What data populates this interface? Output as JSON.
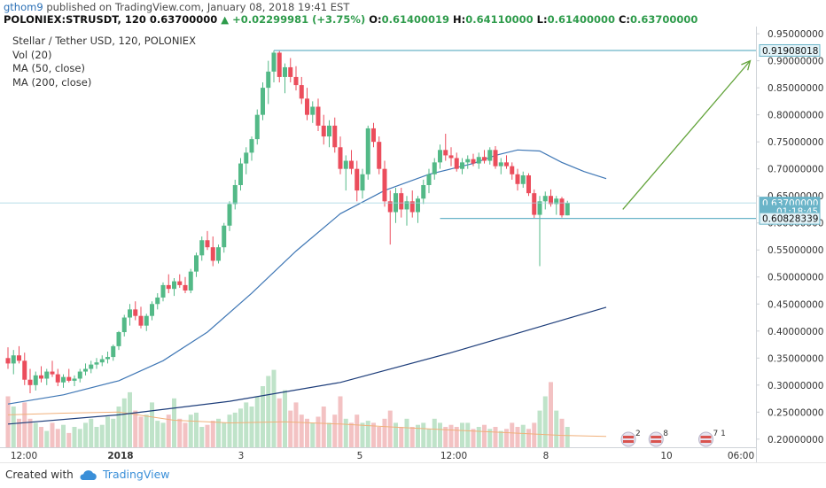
{
  "header": {
    "user": "gthom9",
    "published": "published on TradingView.com, January 08, 2018 19:41 EST",
    "symbol": "POLONIEX:STRUSDT, 120",
    "last": "0.63700000",
    "change": "▲ +0.02299981 (+3.75%)",
    "o_label": "O:",
    "o": "0.61400019",
    "h_label": "H:",
    "h": "0.64110000",
    "l_label": "L:",
    "l": "0.61400000",
    "c_label": "C:",
    "c": "0.63700000"
  },
  "legend": {
    "title": "Stellar / Tether USD, 120, POLONIEX",
    "vol": "Vol (20)",
    "ma50": "MA (50, close)",
    "ma200": "MA (200, close)"
  },
  "footer": {
    "created": "Created with",
    "brand": "TradingView"
  },
  "colors": {
    "up": "#53b987",
    "down": "#eb4d5c",
    "vol_up": "#bfe3c9",
    "vol_down": "#f3c2c3",
    "ma50": "#3f77b5",
    "ma200": "#1d3d7a",
    "ma_vol": "#f0b07a",
    "hline": "#6ab4c8",
    "arrow": "#62a33a",
    "price_tag": "#6ab4c8"
  },
  "chart_data": {
    "type": "candlestick",
    "title": "Stellar / Tether USD, 120, POLONIEX",
    "price_axis": [
      "0.95000000",
      "0.90000000",
      "0.85000000",
      "0.80000000",
      "0.75000000",
      "0.70000000",
      "0.65000000",
      "0.60000000",
      "0.55000000",
      "0.50000000",
      "0.45000000",
      "0.40000000",
      "0.35000000",
      "0.30000000",
      "0.25000000",
      "0.20000000"
    ],
    "time_axis": [
      "12:00",
      "2018",
      "3",
      "5",
      "12:00",
      "8",
      "10",
      "06:00"
    ],
    "price_range": [
      0.185,
      0.96
    ],
    "price_tags": [
      {
        "label": "0.91908018",
        "price": 0.91908018,
        "style": "outline"
      },
      {
        "label": "0.63700000",
        "price": 0.637,
        "style": "filled"
      },
      {
        "label": "01:18:45",
        "price": 0.6215,
        "style": "timer"
      },
      {
        "label": "0.60828339",
        "price": 0.60828339,
        "style": "outline"
      }
    ],
    "horizontal_lines": [
      {
        "price": 0.91908018,
        "from_bar": 48,
        "to_bar": 135
      },
      {
        "price": 0.60828339,
        "from_bar": 78,
        "to_bar": 135
      }
    ],
    "trend_arrow": {
      "from_bar": 111,
      "from_price": 0.625,
      "to_bar": 134,
      "to_price": 0.9
    },
    "event_markers": [
      "2",
      "8",
      "7 1"
    ],
    "candles": [
      [
        0.35,
        0.37,
        0.33,
        0.34
      ],
      [
        0.34,
        0.365,
        0.32,
        0.355
      ],
      [
        0.355,
        0.372,
        0.34,
        0.345
      ],
      [
        0.345,
        0.36,
        0.3,
        0.31
      ],
      [
        0.31,
        0.33,
        0.285,
        0.3
      ],
      [
        0.3,
        0.325,
        0.29,
        0.318
      ],
      [
        0.318,
        0.335,
        0.305,
        0.312
      ],
      [
        0.312,
        0.33,
        0.3,
        0.325
      ],
      [
        0.325,
        0.345,
        0.315,
        0.32
      ],
      [
        0.32,
        0.33,
        0.298,
        0.305
      ],
      [
        0.305,
        0.32,
        0.295,
        0.315
      ],
      [
        0.315,
        0.33,
        0.305,
        0.308
      ],
      [
        0.308,
        0.318,
        0.298,
        0.312
      ],
      [
        0.312,
        0.33,
        0.305,
        0.325
      ],
      [
        0.325,
        0.34,
        0.318,
        0.33
      ],
      [
        0.33,
        0.345,
        0.322,
        0.338
      ],
      [
        0.338,
        0.35,
        0.33,
        0.342
      ],
      [
        0.342,
        0.355,
        0.335,
        0.348
      ],
      [
        0.348,
        0.362,
        0.34,
        0.352
      ],
      [
        0.352,
        0.375,
        0.345,
        0.372
      ],
      [
        0.372,
        0.4,
        0.365,
        0.398
      ],
      [
        0.398,
        0.43,
        0.39,
        0.425
      ],
      [
        0.425,
        0.45,
        0.41,
        0.44
      ],
      [
        0.44,
        0.455,
        0.42,
        0.428
      ],
      [
        0.428,
        0.445,
        0.405,
        0.41
      ],
      [
        0.41,
        0.432,
        0.4,
        0.428
      ],
      [
        0.428,
        0.455,
        0.42,
        0.45
      ],
      [
        0.45,
        0.47,
        0.44,
        0.462
      ],
      [
        0.462,
        0.49,
        0.455,
        0.485
      ],
      [
        0.485,
        0.505,
        0.47,
        0.478
      ],
      [
        0.478,
        0.498,
        0.465,
        0.492
      ],
      [
        0.492,
        0.505,
        0.48,
        0.485
      ],
      [
        0.485,
        0.5,
        0.47,
        0.475
      ],
      [
        0.475,
        0.515,
        0.47,
        0.51
      ],
      [
        0.51,
        0.545,
        0.5,
        0.54
      ],
      [
        0.54,
        0.575,
        0.53,
        0.568
      ],
      [
        0.568,
        0.585,
        0.55,
        0.555
      ],
      [
        0.555,
        0.575,
        0.52,
        0.53
      ],
      [
        0.53,
        0.56,
        0.525,
        0.555
      ],
      [
        0.555,
        0.6,
        0.545,
        0.595
      ],
      [
        0.595,
        0.64,
        0.585,
        0.635
      ],
      [
        0.635,
        0.68,
        0.625,
        0.67
      ],
      [
        0.67,
        0.72,
        0.66,
        0.71
      ],
      [
        0.71,
        0.74,
        0.69,
        0.73
      ],
      [
        0.73,
        0.76,
        0.715,
        0.755
      ],
      [
        0.755,
        0.81,
        0.745,
        0.8
      ],
      [
        0.8,
        0.86,
        0.79,
        0.85
      ],
      [
        0.85,
        0.9,
        0.82,
        0.88
      ],
      [
        0.88,
        0.919,
        0.86,
        0.915
      ],
      [
        0.915,
        0.918,
        0.86,
        0.87
      ],
      [
        0.87,
        0.895,
        0.84,
        0.888
      ],
      [
        0.888,
        0.905,
        0.86,
        0.87
      ],
      [
        0.87,
        0.89,
        0.845,
        0.855
      ],
      [
        0.855,
        0.87,
        0.82,
        0.83
      ],
      [
        0.83,
        0.85,
        0.79,
        0.8
      ],
      [
        0.8,
        0.825,
        0.785,
        0.815
      ],
      [
        0.815,
        0.83,
        0.77,
        0.78
      ],
      [
        0.78,
        0.8,
        0.745,
        0.76
      ],
      [
        0.76,
        0.79,
        0.74,
        0.78
      ],
      [
        0.78,
        0.795,
        0.73,
        0.74
      ],
      [
        0.74,
        0.76,
        0.69,
        0.7
      ],
      [
        0.7,
        0.725,
        0.66,
        0.715
      ],
      [
        0.715,
        0.735,
        0.69,
        0.7
      ],
      [
        0.7,
        0.715,
        0.64,
        0.66
      ],
      [
        0.66,
        0.7,
        0.645,
        0.69
      ],
      [
        0.69,
        0.78,
        0.68,
        0.775
      ],
      [
        0.775,
        0.785,
        0.74,
        0.75
      ],
      [
        0.75,
        0.76,
        0.69,
        0.7
      ],
      [
        0.7,
        0.715,
        0.63,
        0.64
      ],
      [
        0.64,
        0.66,
        0.56,
        0.62
      ],
      [
        0.62,
        0.665,
        0.6,
        0.655
      ],
      [
        0.655,
        0.665,
        0.61,
        0.625
      ],
      [
        0.625,
        0.65,
        0.595,
        0.64
      ],
      [
        0.64,
        0.66,
        0.61,
        0.62
      ],
      [
        0.62,
        0.65,
        0.6,
        0.645
      ],
      [
        0.645,
        0.68,
        0.635,
        0.67
      ],
      [
        0.67,
        0.7,
        0.655,
        0.69
      ],
      [
        0.69,
        0.72,
        0.68,
        0.712
      ],
      [
        0.712,
        0.745,
        0.7,
        0.735
      ],
      [
        0.735,
        0.765,
        0.715,
        0.725
      ],
      [
        0.725,
        0.74,
        0.705,
        0.72
      ],
      [
        0.72,
        0.73,
        0.695,
        0.7
      ],
      [
        0.7,
        0.72,
        0.69,
        0.712
      ],
      [
        0.712,
        0.725,
        0.7,
        0.718
      ],
      [
        0.718,
        0.728,
        0.705,
        0.71
      ],
      [
        0.71,
        0.73,
        0.7,
        0.722
      ],
      [
        0.722,
        0.735,
        0.71,
        0.715
      ],
      [
        0.715,
        0.74,
        0.708,
        0.735
      ],
      [
        0.735,
        0.742,
        0.7,
        0.705
      ],
      [
        0.705,
        0.72,
        0.69,
        0.712
      ],
      [
        0.712,
        0.725,
        0.7,
        0.705
      ],
      [
        0.705,
        0.712,
        0.68,
        0.69
      ],
      [
        0.69,
        0.7,
        0.66,
        0.672
      ],
      [
        0.672,
        0.695,
        0.665,
        0.688
      ],
      [
        0.688,
        0.692,
        0.65,
        0.655
      ],
      [
        0.655,
        0.662,
        0.608,
        0.615
      ],
      [
        0.615,
        0.65,
        0.52,
        0.64
      ],
      [
        0.64,
        0.658,
        0.625,
        0.65
      ],
      [
        0.65,
        0.662,
        0.63,
        0.635
      ],
      [
        0.635,
        0.65,
        0.615,
        0.645
      ],
      [
        0.645,
        0.648,
        0.61,
        0.614
      ],
      [
        0.614,
        0.641,
        0.614,
        0.637
      ]
    ],
    "volume_percent": [
      25,
      20,
      14,
      22,
      14,
      12,
      10,
      8,
      12,
      9,
      11,
      7,
      10,
      9,
      12,
      14,
      10,
      11,
      15,
      14,
      20,
      24,
      27,
      18,
      15,
      16,
      22,
      13,
      12,
      16,
      24,
      14,
      12,
      16,
      17,
      10,
      11,
      13,
      14,
      12,
      16,
      17,
      19,
      22,
      20,
      25,
      30,
      35,
      38,
      24,
      28,
      18,
      22,
      16,
      14,
      12,
      15,
      20,
      12,
      16,
      25,
      14,
      12,
      16,
      12,
      13,
      12,
      10,
      14,
      18,
      12,
      10,
      14,
      10,
      11,
      12,
      9,
      14,
      12,
      10,
      11,
      10,
      12,
      12,
      9,
      10,
      11,
      9,
      10,
      8,
      9,
      12,
      10,
      11,
      9,
      12,
      18,
      25,
      32,
      18,
      14,
      10
    ],
    "ma50_points": [
      [
        0,
        0.265
      ],
      [
        10,
        0.282
      ],
      [
        20,
        0.308
      ],
      [
        28,
        0.345
      ],
      [
        36,
        0.398
      ],
      [
        44,
        0.47
      ],
      [
        52,
        0.548
      ],
      [
        60,
        0.617
      ],
      [
        68,
        0.66
      ],
      [
        76,
        0.69
      ],
      [
        84,
        0.71
      ],
      [
        88,
        0.725
      ],
      [
        92,
        0.735
      ],
      [
        96,
        0.733
      ],
      [
        100,
        0.712
      ],
      [
        104,
        0.695
      ],
      [
        108,
        0.682
      ]
    ],
    "ma200_points": [
      [
        0,
        0.228
      ],
      [
        20,
        0.245
      ],
      [
        40,
        0.27
      ],
      [
        60,
        0.305
      ],
      [
        80,
        0.36
      ],
      [
        100,
        0.42
      ],
      [
        108,
        0.444
      ]
    ],
    "ma_vol_points": [
      [
        0,
        0.245
      ],
      [
        10,
        0.248
      ],
      [
        20,
        0.25
      ],
      [
        30,
        0.235
      ],
      [
        40,
        0.23
      ],
      [
        50,
        0.232
      ],
      [
        60,
        0.228
      ],
      [
        70,
        0.222
      ],
      [
        80,
        0.217
      ],
      [
        90,
        0.212
      ],
      [
        100,
        0.207
      ],
      [
        108,
        0.205
      ]
    ]
  }
}
